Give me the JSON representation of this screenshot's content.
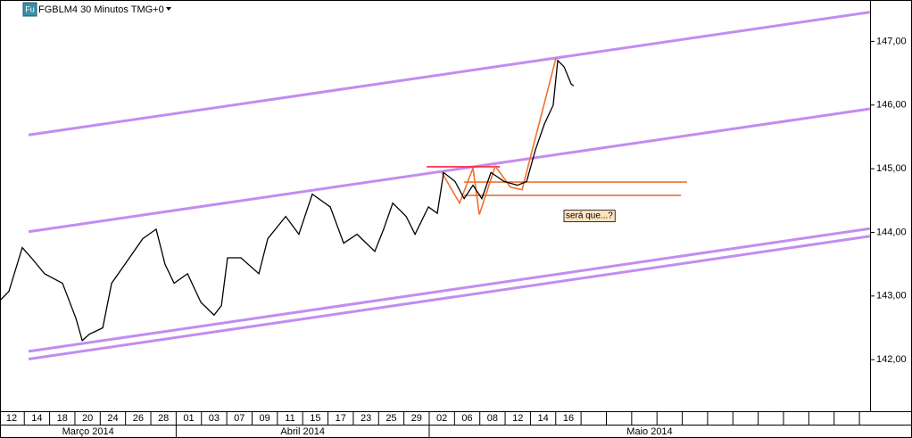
{
  "chart_data": {
    "type": "line",
    "title": "FGBLM4 30 Minutos TMG+0",
    "icon_label": "Fu",
    "annotation": "será que...?",
    "categories": [
      "12",
      "14",
      "18",
      "20",
      "24",
      "26",
      "28",
      "01",
      "03",
      "07",
      "09",
      "11",
      "15",
      "17",
      "23",
      "25",
      "29",
      "02",
      "06",
      "08",
      "12",
      "14",
      "16",
      null,
      null,
      null,
      null,
      null,
      null,
      null,
      null,
      null,
      null,
      null
    ],
    "months": [
      "Março 2014",
      "Abril 2014",
      "Maio 2014"
    ],
    "xlim": [
      -0.46,
      33.92
    ],
    "ylim": [
      141.19,
      147.65
    ],
    "yticks": [
      {
        "value": 142,
        "label": "142,00"
      },
      {
        "value": 143,
        "label": "143,00"
      },
      {
        "value": 144,
        "label": "144,00"
      },
      {
        "value": 145,
        "label": "145,00"
      },
      {
        "value": 146,
        "label": "146,00"
      },
      {
        "value": 147,
        "label": "147,00"
      }
    ],
    "series": [
      {
        "name": "FGBLM4",
        "color": "#000000",
        "x": [
          -0.46,
          -0.11,
          0.42,
          0.78,
          1.3,
          2.01,
          2.54,
          2.79,
          3.07,
          3.6,
          3.95,
          4.48,
          5.18,
          5.71,
          6.06,
          6.42,
          6.95,
          7.48,
          8.0,
          8.29,
          8.53,
          9.06,
          9.77,
          10.12,
          10.83,
          11.35,
          11.88,
          12.59,
          13.12,
          13.65,
          14.35,
          14.7,
          15.06,
          15.59,
          15.94,
          16.47,
          16.82,
          17.07,
          17.52,
          17.88,
          18.23,
          18.58,
          18.94,
          19.46,
          19.99,
          20.35,
          20.7,
          21.05,
          21.4,
          21.58,
          21.83,
          22.11,
          22.21
        ],
        "values": [
          142.93,
          143.07,
          143.76,
          143.6,
          143.35,
          143.2,
          142.65,
          142.3,
          142.4,
          142.5,
          143.2,
          143.5,
          143.9,
          144.05,
          143.5,
          143.2,
          143.35,
          142.9,
          142.7,
          142.85,
          143.6,
          143.6,
          143.35,
          143.9,
          144.25,
          143.97,
          144.6,
          144.4,
          143.83,
          143.97,
          143.7,
          144.05,
          144.46,
          144.25,
          143.97,
          144.4,
          144.3,
          144.94,
          144.8,
          144.53,
          144.74,
          144.53,
          144.94,
          144.8,
          144.74,
          144.8,
          145.3,
          145.7,
          146.0,
          146.7,
          146.6,
          146.33,
          146.3
        ]
      }
    ],
    "trendlines": [
      {
        "color": "#c38cf0",
        "x": [
          0.67,
          33.92
        ],
        "values": [
          145.53,
          147.46
        ]
      },
      {
        "color": "#c38cf0",
        "x": [
          0.67,
          33.92
        ],
        "values": [
          144.01,
          145.94
        ]
      },
      {
        "color": "#c38cf0",
        "x": [
          0.67,
          33.92
        ],
        "values": [
          142.13,
          144.06
        ]
      },
      {
        "color": "#c38cf0",
        "x": [
          0.67,
          33.92
        ],
        "values": [
          142.01,
          143.94
        ]
      },
      {
        "color": "#ff2040",
        "x": [
          16.4,
          19.29
        ],
        "values": [
          145.03,
          145.03
        ]
      },
      {
        "color": "#f07030",
        "x": [
          17.88,
          26.69
        ],
        "values": [
          144.79,
          144.79
        ]
      },
      {
        "color": "#f07030",
        "x": [
          17.88,
          26.45
        ],
        "values": [
          144.58,
          144.58
        ]
      },
      {
        "color": "#f07030",
        "x": [
          17.0,
          17.7,
          18.23,
          18.48,
          19.11,
          19.71,
          20.17,
          21.51
        ],
        "values": [
          144.94,
          144.46,
          145.01,
          144.28,
          145.04,
          144.71,
          144.67,
          146.74
        ]
      }
    ]
  }
}
